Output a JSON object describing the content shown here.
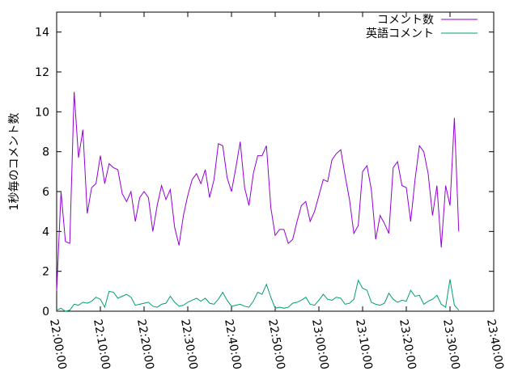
{
  "chart_data": {
    "type": "line",
    "y_label": "1秒毎のコメント数",
    "x": [
      "22:00:00",
      "22:01:00",
      "22:02:00",
      "22:03:00",
      "22:04:00",
      "22:05:00",
      "22:06:00",
      "22:07:00",
      "22:08:00",
      "22:09:00",
      "22:10:00",
      "22:11:00",
      "22:12:00",
      "22:13:00",
      "22:14:00",
      "22:15:00",
      "22:16:00",
      "22:17:00",
      "22:18:00",
      "22:19:00",
      "22:20:00",
      "22:21:00",
      "22:22:00",
      "22:23:00",
      "22:24:00",
      "22:25:00",
      "22:26:00",
      "22:27:00",
      "22:28:00",
      "22:29:00",
      "22:30:00",
      "22:31:00",
      "22:32:00",
      "22:33:00",
      "22:34:00",
      "22:35:00",
      "22:36:00",
      "22:37:00",
      "22:38:00",
      "22:39:00",
      "22:40:00",
      "22:41:00",
      "22:42:00",
      "22:43:00",
      "22:44:00",
      "22:45:00",
      "22:46:00",
      "22:47:00",
      "22:48:00",
      "22:49:00",
      "22:50:00",
      "22:51:00",
      "22:52:00",
      "22:53:00",
      "22:54:00",
      "22:55:00",
      "22:56:00",
      "22:57:00",
      "22:58:00",
      "22:59:00",
      "23:00:00",
      "23:01:00",
      "23:02:00",
      "23:03:00",
      "23:04:00",
      "23:05:00",
      "23:06:00",
      "23:07:00",
      "23:08:00",
      "23:09:00",
      "23:10:00",
      "23:11:00",
      "23:12:00",
      "23:13:00",
      "23:14:00",
      "23:15:00",
      "23:16:00",
      "23:17:00",
      "23:18:00",
      "23:19:00",
      "23:20:00",
      "23:21:00",
      "23:22:00",
      "23:23:00",
      "23:24:00",
      "23:25:00",
      "23:26:00",
      "23:27:00",
      "23:28:00",
      "23:29:00",
      "23:30:00",
      "23:31:00",
      "23:32:00"
    ],
    "series": [
      {
        "name": "コメント数",
        "color": "#9400d3",
        "values": [
          1.0,
          6.0,
          3.5,
          3.4,
          11.0,
          7.7,
          9.1,
          4.9,
          6.2,
          6.4,
          7.8,
          6.4,
          7.4,
          7.2,
          7.1,
          5.9,
          5.5,
          6.0,
          4.5,
          5.7,
          6.0,
          5.7,
          4.0,
          5.3,
          6.3,
          5.6,
          6.1,
          4.2,
          3.3,
          4.8,
          5.8,
          6.6,
          6.9,
          6.4,
          7.1,
          5.7,
          6.6,
          8.4,
          8.3,
          6.7,
          6.0,
          7.2,
          8.5,
          6.2,
          5.3,
          6.9,
          7.8,
          7.8,
          8.3,
          5.2,
          3.8,
          4.1,
          4.1,
          3.4,
          3.6,
          4.5,
          5.3,
          5.5,
          4.5,
          5.0,
          5.8,
          6.6,
          6.5,
          7.6,
          7.9,
          8.1,
          6.8,
          5.6,
          3.9,
          4.3,
          7.0,
          7.3,
          6.1,
          3.6,
          4.8,
          4.4,
          3.9,
          7.2,
          7.5,
          6.3,
          6.2,
          4.5,
          6.6,
          8.3,
          8.0,
          6.9,
          4.8,
          6.3,
          3.2,
          6.3,
          5.3,
          9.7,
          4.0
        ]
      },
      {
        "name": "英語コメント",
        "color": "#009e73",
        "values": [
          0.05,
          0.15,
          0.0,
          0.05,
          0.35,
          0.3,
          0.45,
          0.4,
          0.5,
          0.7,
          0.6,
          0.2,
          1.0,
          0.95,
          0.65,
          0.75,
          0.85,
          0.7,
          0.3,
          0.35,
          0.4,
          0.45,
          0.25,
          0.2,
          0.35,
          0.4,
          0.75,
          0.45,
          0.25,
          0.3,
          0.45,
          0.55,
          0.65,
          0.5,
          0.65,
          0.4,
          0.35,
          0.6,
          0.95,
          0.55,
          0.25,
          0.3,
          0.35,
          0.25,
          0.2,
          0.5,
          0.95,
          0.85,
          1.35,
          0.7,
          0.15,
          0.2,
          0.15,
          0.2,
          0.4,
          0.45,
          0.55,
          0.7,
          0.35,
          0.3,
          0.55,
          0.85,
          0.6,
          0.55,
          0.7,
          0.65,
          0.35,
          0.4,
          0.6,
          1.55,
          1.15,
          1.05,
          0.45,
          0.35,
          0.3,
          0.4,
          0.9,
          0.6,
          0.45,
          0.55,
          0.5,
          1.05,
          0.75,
          0.8,
          0.35,
          0.5,
          0.6,
          0.8,
          0.35,
          0.2,
          1.6,
          0.3,
          0.05
        ]
      }
    ],
    "xlim": [
      "22:00:00",
      "23:40:00"
    ],
    "xticks": [
      "22:00:00",
      "22:10:00",
      "22:20:00",
      "22:30:00",
      "22:40:00",
      "22:50:00",
      "23:00:00",
      "23:10:00",
      "23:20:00",
      "23:30:00",
      "23:40:00"
    ],
    "ylim": [
      0,
      15
    ],
    "yticks": [
      0,
      2,
      4,
      6,
      8,
      10,
      12,
      14
    ],
    "legend": "top-right"
  }
}
